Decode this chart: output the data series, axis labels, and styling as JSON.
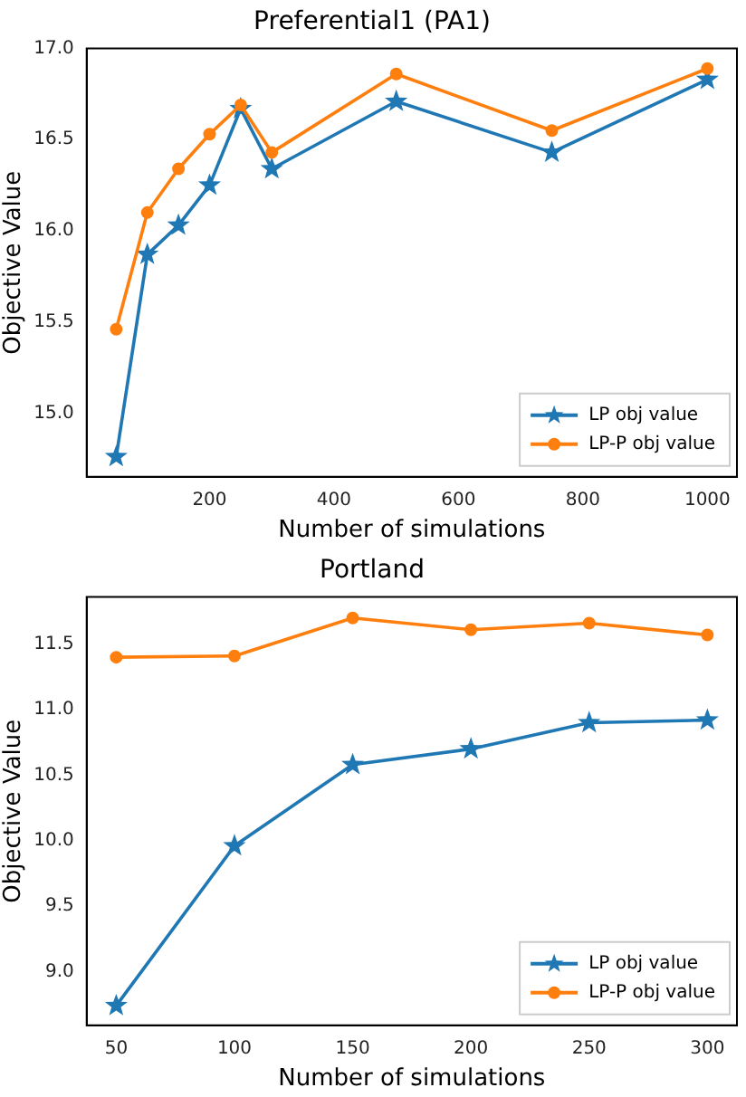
{
  "chart_data": [
    {
      "type": "line",
      "title": "Preferential1 (PA1)",
      "xlabel": "Number of simulations",
      "ylabel": "Objective Value",
      "x": [
        50,
        100,
        150,
        200,
        250,
        300,
        500,
        750,
        1000
      ],
      "series": [
        {
          "name": "LP obj value",
          "color": "#1f77b4",
          "marker": "star",
          "values": [
            14.76,
            15.87,
            16.03,
            16.25,
            16.67,
            16.34,
            16.71,
            16.43,
            16.83
          ]
        },
        {
          "name": "LP-P obj value",
          "color": "#ff7f0e",
          "marker": "circle",
          "values": [
            15.46,
            16.1,
            16.34,
            16.53,
            16.69,
            16.43,
            16.86,
            16.55,
            16.89
          ]
        }
      ],
      "xlim": [
        2.5,
        1047.5
      ],
      "xticks": [
        200,
        400,
        600,
        800,
        1000
      ],
      "ylim": [
        14.65,
        17.0
      ],
      "yticks": [
        {
          "value": 15,
          "label": "15.0"
        },
        15.5,
        {
          "value": 16,
          "label": "16.0"
        },
        16.5,
        {
          "value": 17,
          "label": "17.0"
        }
      ],
      "grid": false,
      "legend": "bottom right"
    },
    {
      "type": "line",
      "title": "Portland",
      "xlabel": "Number of simulations",
      "ylabel": "Objective Value",
      "x": [
        50,
        100,
        150,
        200,
        250,
        300
      ],
      "series": [
        {
          "name": "LP obj value",
          "color": "#1f77b4",
          "marker": "star",
          "values": [
            8.74,
            9.96,
            10.58,
            10.7,
            10.9,
            10.92
          ]
        },
        {
          "name": "LP-P obj value",
          "color": "#ff7f0e",
          "marker": "circle",
          "values": [
            11.4,
            11.41,
            11.7,
            11.61,
            11.66,
            11.57
          ]
        }
      ],
      "xlim": [
        37.5,
        312.5
      ],
      "xticks": [
        50,
        100,
        150,
        200,
        250,
        300
      ],
      "ylim": [
        8.59,
        11.86
      ],
      "yticks": [
        {
          "value": 9,
          "label": "9.0"
        },
        9.5,
        {
          "value": 10,
          "label": "10.0"
        },
        10.5,
        {
          "value": 11,
          "label": "11.0"
        },
        11.5
      ],
      "grid": false,
      "legend": "bottom right"
    }
  ]
}
